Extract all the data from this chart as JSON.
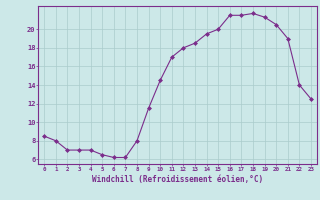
{
  "hours": [
    0,
    1,
    2,
    3,
    4,
    5,
    6,
    7,
    8,
    9,
    10,
    11,
    12,
    13,
    14,
    15,
    16,
    17,
    18,
    19,
    20,
    21,
    22,
    23
  ],
  "values": [
    8.5,
    8.0,
    7.0,
    7.0,
    7.0,
    6.5,
    6.2,
    6.2,
    8.0,
    11.5,
    14.5,
    17.0,
    18.0,
    18.5,
    19.5,
    20.0,
    21.5,
    21.5,
    21.7,
    21.3,
    20.5,
    19.0,
    14.0,
    12.5
  ],
  "line_color": "#7b2d8b",
  "marker": "D",
  "marker_size": 2,
  "bg_color": "#cce8e8",
  "grid_color": "#aacccc",
  "axis_color": "#7b2d8b",
  "tick_color": "#7b2d8b",
  "xlabel": "Windchill (Refroidissement éolien,°C)",
  "xlabel_fontsize": 5.5,
  "ylabel_ticks": [
    6,
    8,
    10,
    12,
    14,
    16,
    18,
    20
  ],
  "ylim": [
    5.5,
    22.5
  ],
  "xlim": [
    -0.5,
    23.5
  ]
}
